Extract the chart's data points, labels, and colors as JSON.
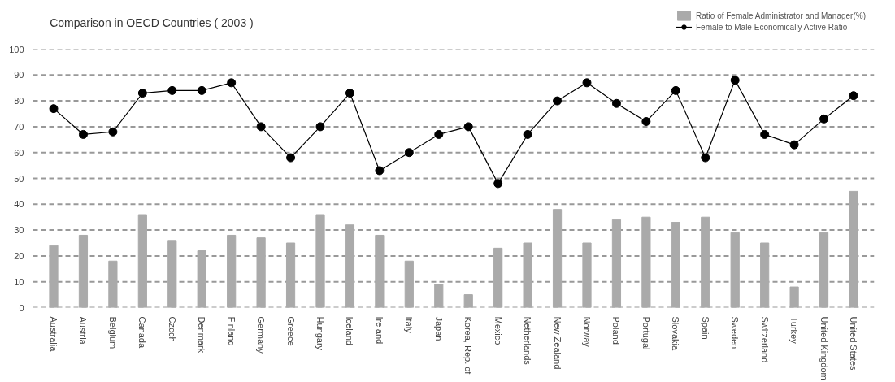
{
  "chart_data": {
    "type": "bar",
    "title": "Comparison in OECD Countries ( 2003 )",
    "categories": [
      "Australia",
      "Austria",
      "Belgium",
      "Canada",
      "Czech",
      "Denmark",
      "Finland",
      "Germany",
      "Greece",
      "Hungary",
      "Iceland",
      "Ireland",
      "Italy",
      "Japan",
      "Korea, Rep. of",
      "Mexico",
      "Netherlands",
      "New Zealand",
      "Norway",
      "Poland",
      "Portugal",
      "Slovakia",
      "Spain",
      "Sweden",
      "Switzerland",
      "Turkey",
      "United Kingdom",
      "United States"
    ],
    "series": [
      {
        "name": "Ratio of Female Administrator and Manager(%)",
        "color": "#aaaaaa",
        "values": [
          24,
          28,
          18,
          36,
          26,
          22,
          28,
          27,
          25,
          36,
          32,
          28,
          18,
          9,
          5,
          23,
          25,
          38,
          25,
          34,
          35,
          33,
          35,
          29,
          25,
          8,
          29,
          45
        ]
      },
      {
        "name": "Female to Male Economically Active Ratio",
        "type": "line",
        "color": "#000000",
        "marker": "circle",
        "values": [
          77,
          67,
          68,
          83,
          84,
          84,
          87,
          70,
          58,
          70,
          83,
          53,
          60,
          67,
          70,
          48,
          67,
          80,
          87,
          79,
          72,
          84,
          58,
          88,
          67,
          63,
          73,
          82
        ]
      }
    ],
    "ylim": [
      0,
      100
    ],
    "yticks": [
      0,
      10,
      20,
      30,
      40,
      50,
      60,
      70,
      80,
      90,
      100
    ],
    "grid": "y",
    "legend": "top right"
  }
}
